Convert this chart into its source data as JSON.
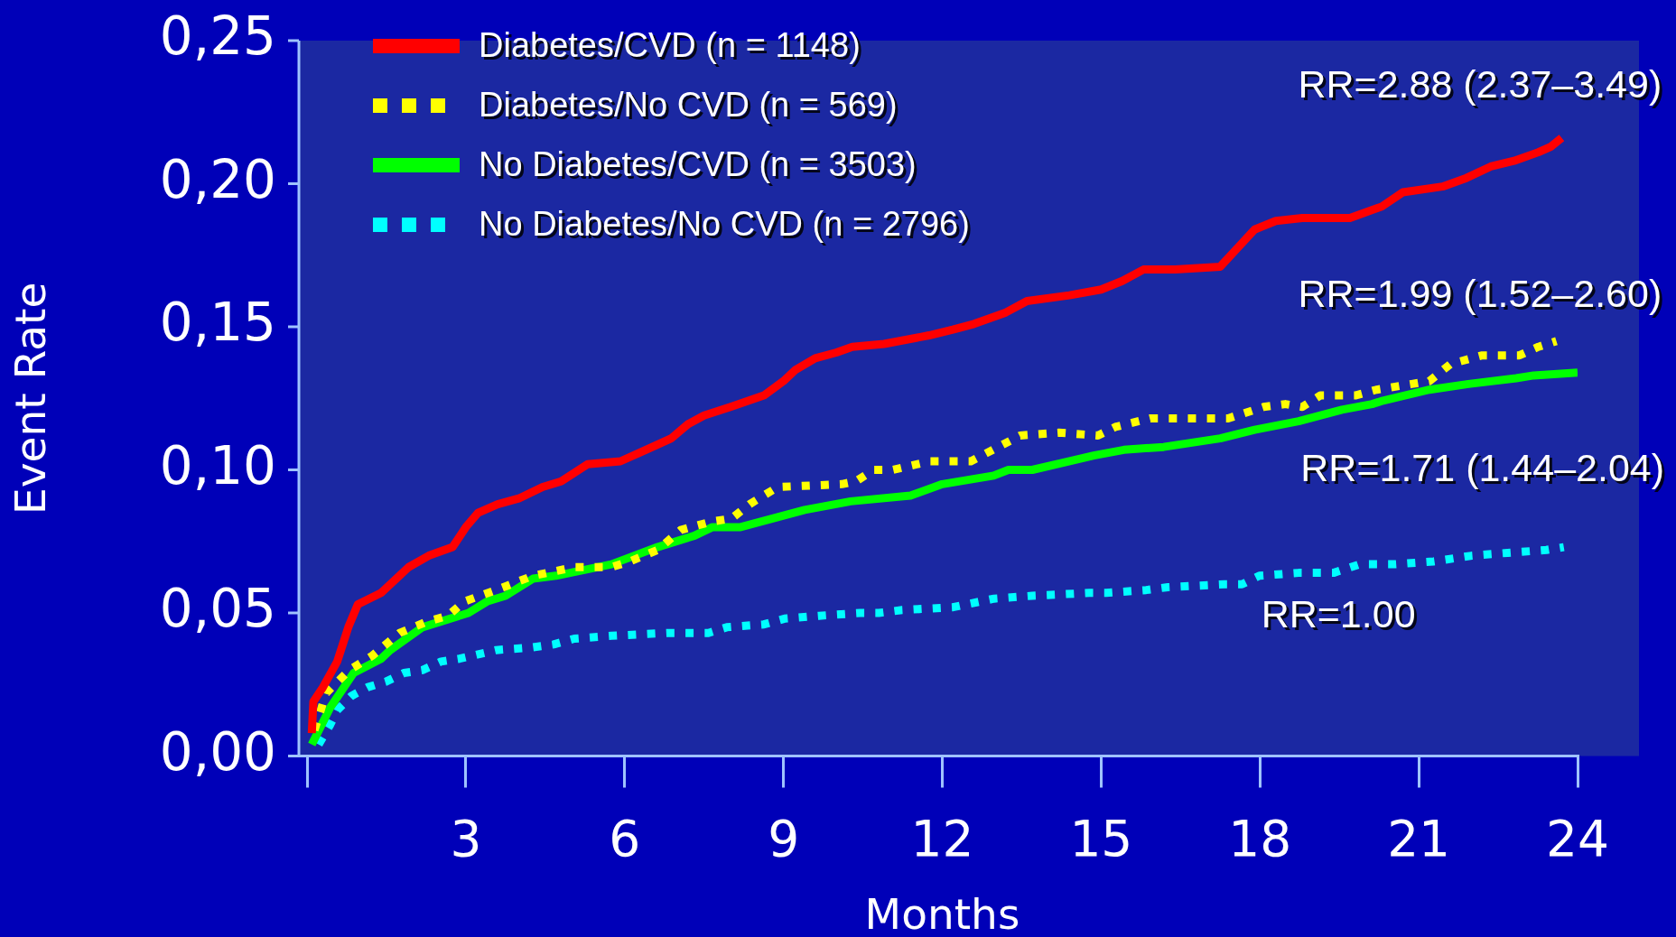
{
  "chart_data": {
    "type": "line",
    "xlabel": "Months",
    "ylabel": "Event Rate",
    "xlim": [
      0,
      24
    ],
    "xticks": [
      {
        "value": 0,
        "label": null
      },
      3,
      6,
      9,
      12,
      15,
      18,
      21,
      24
    ],
    "ylim": [
      0,
      0.25
    ],
    "yticks": [
      {
        "value": 0,
        "label": "0,00"
      },
      {
        "value": 0.05,
        "label": "0,05"
      },
      {
        "value": 0.1,
        "label": "0,10"
      },
      {
        "value": 0.15,
        "label": "0,15"
      },
      {
        "value": 0.2,
        "label": "0,20"
      },
      {
        "value": 0.25,
        "label": "0,25"
      }
    ],
    "grid": false,
    "legend": "top left",
    "series": [
      {
        "name": "Diabetes/CVD (n = 1148)",
        "color": "#ff0000",
        "line_style": "solid",
        "x": [
          0.09,
          0.12,
          0.3,
          0.57,
          0.78,
          0.96,
          1.4,
          1.92,
          2.3,
          2.75,
          3.0,
          3.23,
          3.6,
          4.0,
          4.45,
          4.8,
          5.3,
          5.92,
          6.4,
          6.88,
          7.2,
          7.5,
          8.0,
          8.63,
          9.0,
          9.23,
          9.6,
          10.0,
          10.3,
          10.9,
          11.75,
          12.2,
          12.6,
          13.2,
          13.6,
          14.4,
          15.0,
          15.4,
          15.8,
          16.4,
          17.25,
          17.6,
          17.9,
          18.3,
          18.8,
          19.7,
          20.3,
          20.7,
          21.45,
          21.9,
          22.36,
          22.8,
          23.26,
          23.5,
          23.7
        ],
        "values": [
          0.008,
          0.019,
          0.024,
          0.033,
          0.045,
          0.053,
          0.057,
          0.066,
          0.07,
          0.073,
          0.08,
          0.085,
          0.088,
          0.09,
          0.094,
          0.096,
          0.102,
          0.103,
          0.107,
          0.111,
          0.116,
          0.119,
          0.122,
          0.126,
          0.131,
          0.135,
          0.139,
          0.141,
          0.143,
          0.144,
          0.147,
          0.149,
          0.151,
          0.155,
          0.159,
          0.161,
          0.163,
          0.166,
          0.17,
          0.17,
          0.171,
          0.178,
          0.184,
          0.187,
          0.188,
          0.188,
          0.192,
          0.197,
          0.199,
          0.202,
          0.206,
          0.208,
          0.211,
          0.213,
          0.216
        ]
      },
      {
        "name": "Diabetes/No CVD (n = 569)",
        "color": "#ffff00",
        "line_style": "dotted",
        "x": [
          0.14,
          0.36,
          0.8,
          1.23,
          1.75,
          2.27,
          2.66,
          2.97,
          3.57,
          4.27,
          5.05,
          5.75,
          6.1,
          6.62,
          7.06,
          7.66,
          8.02,
          8.36,
          8.89,
          10.1,
          10.37,
          10.7,
          11.06,
          11.76,
          12.54,
          13.16,
          13.47,
          14.2,
          14.94,
          15.27,
          15.93,
          17.0,
          17.4,
          18.07,
          18.48,
          18.8,
          19.14,
          19.8,
          20.2,
          20.87,
          21.2,
          21.6,
          22.2,
          22.9,
          23.26,
          23.6
        ],
        "values": [
          0.009,
          0.022,
          0.03,
          0.035,
          0.043,
          0.047,
          0.049,
          0.054,
          0.058,
          0.063,
          0.066,
          0.066,
          0.068,
          0.072,
          0.079,
          0.082,
          0.083,
          0.088,
          0.094,
          0.095,
          0.096,
          0.1,
          0.1,
          0.103,
          0.103,
          0.109,
          0.112,
          0.113,
          0.112,
          0.115,
          0.118,
          0.118,
          0.118,
          0.122,
          0.123,
          0.122,
          0.126,
          0.126,
          0.128,
          0.13,
          0.131,
          0.137,
          0.14,
          0.14,
          0.143,
          0.145
        ]
      },
      {
        "name": "No Diabetes/CVD (n = 3503)",
        "color": "#00ff00",
        "line_style": "solid",
        "x": [
          0.09,
          0.44,
          0.88,
          1.4,
          1.57,
          2.18,
          3.05,
          3.4,
          3.75,
          4.27,
          4.7,
          5.75,
          6.62,
          7.32,
          7.66,
          8.19,
          9.4,
          10.27,
          11.4,
          12.0,
          12.97,
          13.25,
          13.7,
          14.86,
          15.43,
          16.18,
          17.25,
          17.9,
          18.73,
          19.55,
          20.12,
          20.29,
          21.2,
          21.94,
          22.84,
          23.17,
          24.0
        ],
        "values": [
          0.004,
          0.017,
          0.029,
          0.034,
          0.037,
          0.045,
          0.05,
          0.054,
          0.056,
          0.062,
          0.063,
          0.067,
          0.073,
          0.077,
          0.08,
          0.08,
          0.086,
          0.089,
          0.091,
          0.095,
          0.098,
          0.1,
          0.1,
          0.105,
          0.107,
          0.108,
          0.111,
          0.114,
          0.117,
          0.121,
          0.123,
          0.124,
          0.128,
          0.13,
          0.132,
          0.133,
          0.134
        ]
      },
      {
        "name": "No Diabetes/No CVD (n = 2796)",
        "color": "#00ffff",
        "line_style": "dotted",
        "x": [
          0.22,
          0.44,
          0.57,
          0.84,
          1.14,
          1.49,
          1.83,
          2.18,
          2.53,
          2.88,
          3.57,
          4.27,
          4.66,
          5.05,
          5.75,
          6.8,
          7.24,
          7.58,
          7.93,
          8.63,
          9.02,
          9.67,
          10.45,
          10.8,
          11.24,
          12.2,
          12.98,
          13.7,
          14.78,
          15.1,
          15.85,
          16.26,
          17.33,
          17.66,
          17.99,
          18.73,
          19.39,
          19.88,
          20.54,
          21.28,
          22.0,
          22.68,
          23.41,
          23.74
        ],
        "values": [
          0.004,
          0.011,
          0.016,
          0.021,
          0.024,
          0.026,
          0.029,
          0.03,
          0.033,
          0.034,
          0.037,
          0.038,
          0.039,
          0.041,
          0.042,
          0.043,
          0.043,
          0.043,
          0.045,
          0.046,
          0.048,
          0.049,
          0.05,
          0.05,
          0.051,
          0.052,
          0.055,
          0.056,
          0.057,
          0.057,
          0.058,
          0.059,
          0.06,
          0.06,
          0.063,
          0.064,
          0.064,
          0.067,
          0.067,
          0.068,
          0.07,
          0.071,
          0.072,
          0.073
        ]
      }
    ],
    "annotations": [
      "RR=2.88 (2.37–3.49)",
      "RR=1.99 (1.52–2.60)",
      "RR=1.71 (1.44–2.04)",
      "RR=1.00"
    ]
  }
}
